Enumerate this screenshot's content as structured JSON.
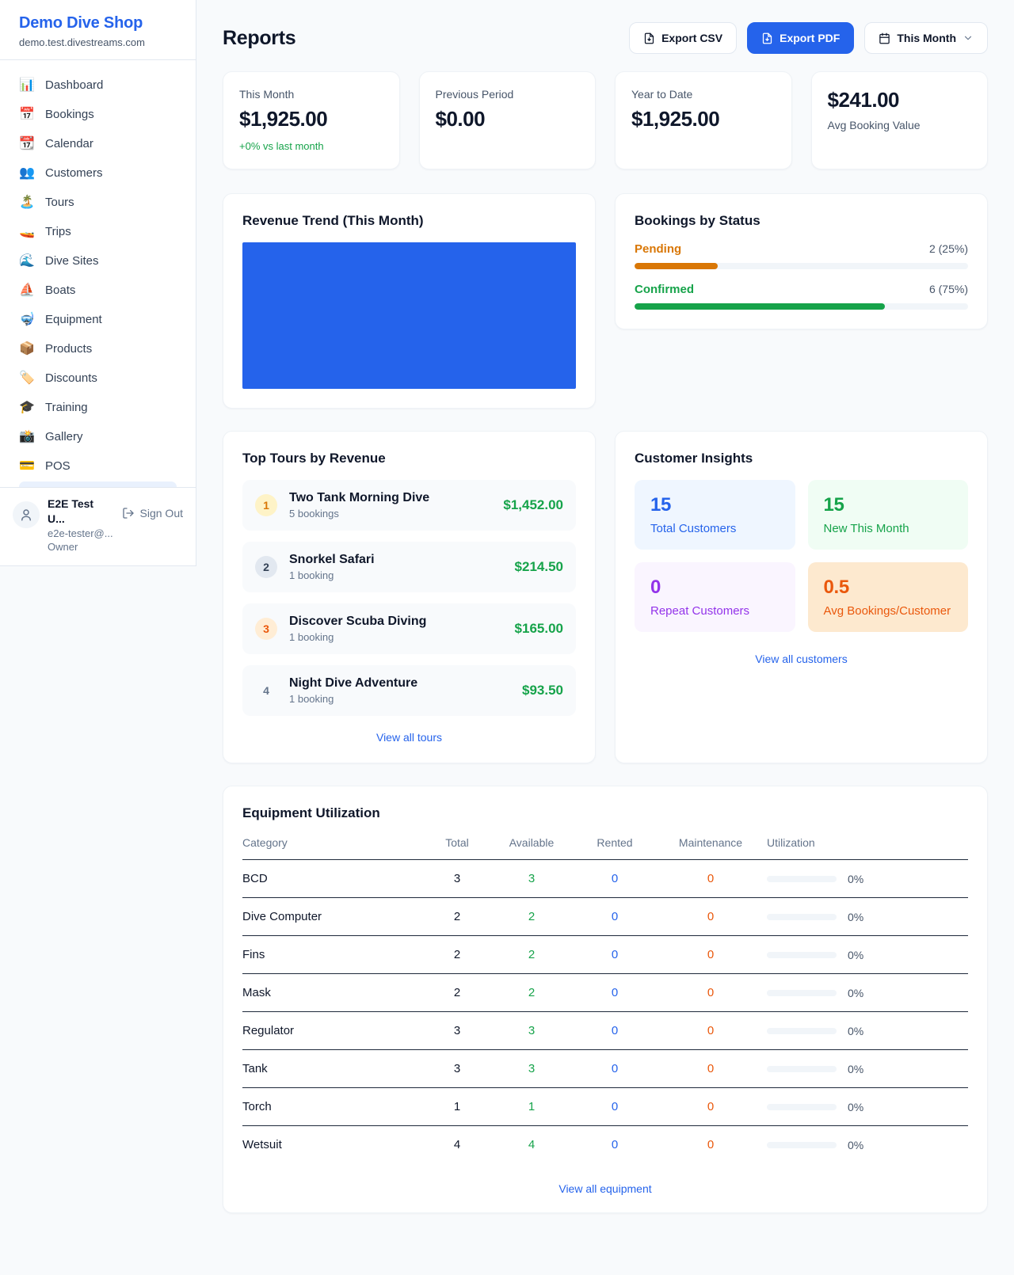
{
  "colors": {
    "accent_blue": "#2563eb",
    "success_green": "#16a34a",
    "pending_orange": "#d97706",
    "maintenance_orange": "#ea580c",
    "repeat_purple": "#9333ea",
    "chart_bar_blue": "#2563eb"
  },
  "sidebar": {
    "brand": {
      "name": "Demo Dive Shop",
      "domain": "demo.test.divestreams.com"
    },
    "nav": [
      {
        "icon": "📊",
        "label": "Dashboard"
      },
      {
        "icon": "📅",
        "label": "Bookings"
      },
      {
        "icon": "📆",
        "label": "Calendar"
      },
      {
        "icon": "👥",
        "label": "Customers"
      },
      {
        "icon": "🏝️",
        "label": "Tours"
      },
      {
        "icon": "🚤",
        "label": "Trips"
      },
      {
        "icon": "🌊",
        "label": "Dive Sites"
      },
      {
        "icon": "⛵",
        "label": "Boats"
      },
      {
        "icon": "🤿",
        "label": "Equipment"
      },
      {
        "icon": "📦",
        "label": "Products"
      },
      {
        "icon": "🏷️",
        "label": "Discounts"
      },
      {
        "icon": "🎓",
        "label": "Training"
      },
      {
        "icon": "📸",
        "label": "Gallery"
      },
      {
        "icon": "💳",
        "label": "POS"
      }
    ],
    "user": {
      "name": "E2E Test U...",
      "email": "e2e-tester@...",
      "role": "Owner",
      "sign_out": "Sign Out"
    }
  },
  "header": {
    "title": "Reports",
    "export_csv": "Export CSV",
    "export_pdf": "Export PDF",
    "period": "This Month"
  },
  "stats": [
    {
      "label": "This Month",
      "value": "$1,925.00",
      "delta": "+0% vs last month"
    },
    {
      "label": "Previous Period",
      "value": "$0.00"
    },
    {
      "label": "Year to Date",
      "value": "$1,925.00"
    },
    {
      "label": "Avg Booking Value",
      "value": "$241.00"
    }
  ],
  "revenue_trend": {
    "title": "Revenue Trend (This Month)"
  },
  "chart_data": {
    "type": "bar",
    "title": "Revenue Trend (This Month)",
    "categories": [
      "This Month"
    ],
    "values": [
      1925
    ],
    "xlabel": "",
    "ylabel": "",
    "note": "rendered as a single solid full-width blue bar, no axes or gridlines"
  },
  "bookings_by_status": {
    "title": "Bookings by Status",
    "rows": [
      {
        "label": "Pending",
        "value": "2 (25%)",
        "pct": 25
      },
      {
        "label": "Confirmed",
        "value": "6 (75%)",
        "pct": 75
      }
    ]
  },
  "top_tours": {
    "title": "Top Tours by Revenue",
    "items": [
      {
        "rank": "1",
        "name": "Two Tank Morning Dive",
        "bookings": "5 bookings",
        "revenue": "$1,452.00"
      },
      {
        "rank": "2",
        "name": "Snorkel Safari",
        "bookings": "1 booking",
        "revenue": "$214.50"
      },
      {
        "rank": "3",
        "name": "Discover Scuba Diving",
        "bookings": "1 booking",
        "revenue": "$165.00"
      },
      {
        "rank": "4",
        "name": "Night Dive Adventure",
        "bookings": "1 booking",
        "revenue": "$93.50"
      }
    ],
    "view_all": "View all tours"
  },
  "customer_insights": {
    "title": "Customer Insights",
    "cells": [
      {
        "value": "15",
        "label": "Total Customers"
      },
      {
        "value": "15",
        "label": "New This Month"
      },
      {
        "value": "0",
        "label": "Repeat Customers"
      },
      {
        "value": "0.5",
        "label": "Avg Bookings/Customer"
      }
    ],
    "view_all": "View all customers"
  },
  "equipment": {
    "title": "Equipment Utilization",
    "columns": [
      "Category",
      "Total",
      "Available",
      "Rented",
      "Maintenance",
      "Utilization"
    ],
    "rows": [
      {
        "category": "BCD",
        "total": "3",
        "available": "3",
        "rented": "0",
        "maintenance": "0",
        "utilization": "0%",
        "utilization_pct": 0
      },
      {
        "category": "Dive Computer",
        "total": "2",
        "available": "2",
        "rented": "0",
        "maintenance": "0",
        "utilization": "0%",
        "utilization_pct": 0
      },
      {
        "category": "Fins",
        "total": "2",
        "available": "2",
        "rented": "0",
        "maintenance": "0",
        "utilization": "0%",
        "utilization_pct": 0
      },
      {
        "category": "Mask",
        "total": "2",
        "available": "2",
        "rented": "0",
        "maintenance": "0",
        "utilization": "0%",
        "utilization_pct": 0
      },
      {
        "category": "Regulator",
        "total": "3",
        "available": "3",
        "rented": "0",
        "maintenance": "0",
        "utilization": "0%",
        "utilization_pct": 0
      },
      {
        "category": "Tank",
        "total": "3",
        "available": "3",
        "rented": "0",
        "maintenance": "0",
        "utilization": "0%",
        "utilization_pct": 0
      },
      {
        "category": "Torch",
        "total": "1",
        "available": "1",
        "rented": "0",
        "maintenance": "0",
        "utilization": "0%",
        "utilization_pct": 0
      },
      {
        "category": "Wetsuit",
        "total": "4",
        "available": "4",
        "rented": "0",
        "maintenance": "0",
        "utilization": "0%",
        "utilization_pct": 0
      }
    ],
    "view_all": "View all equipment"
  }
}
